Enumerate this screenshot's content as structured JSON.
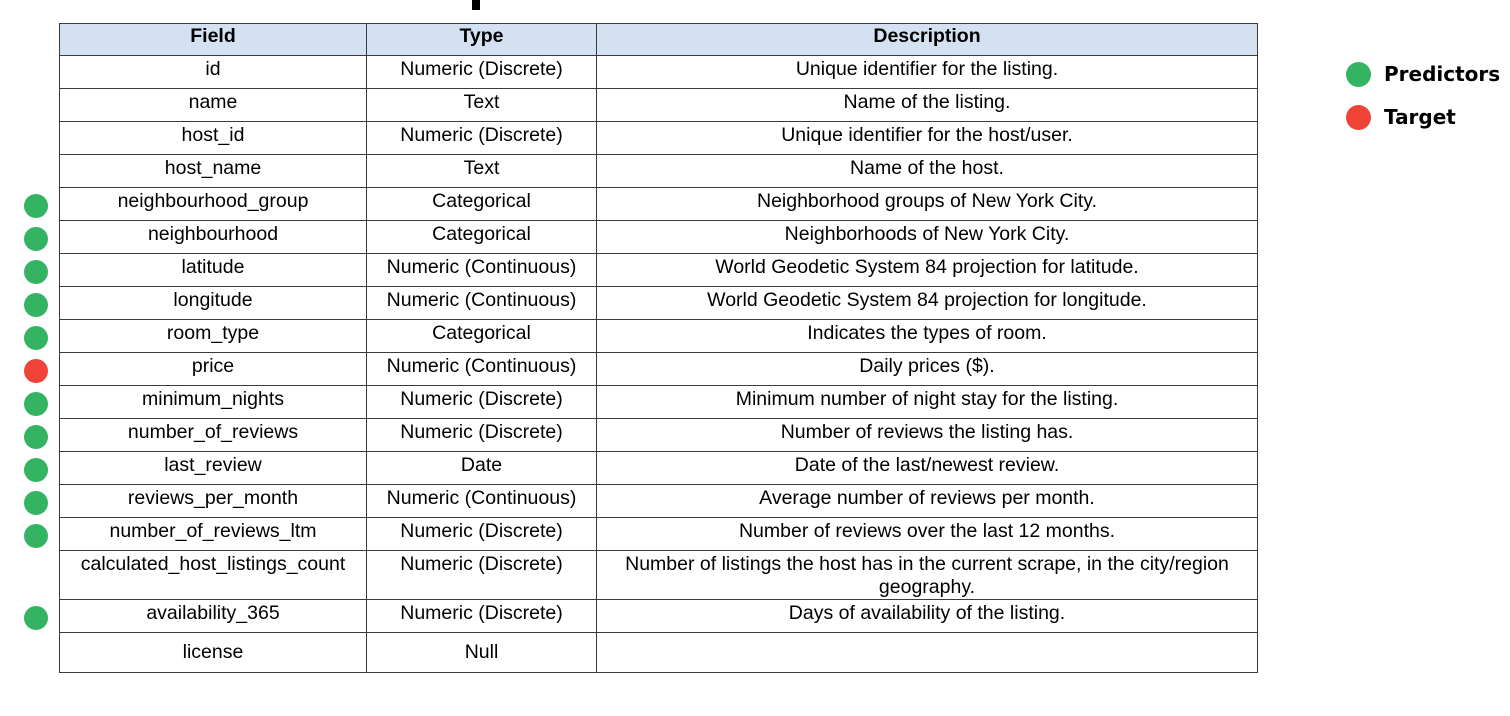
{
  "colors": {
    "predictor": "#34b363",
    "target": "#ee4336",
    "header_bg": "#d4e1f2"
  },
  "table": {
    "headers": [
      "Field",
      "Type",
      "Description"
    ],
    "rows": [
      {
        "field": "id",
        "type": "Numeric (Discrete)",
        "description": "Unique identifier for the listing.",
        "role": ""
      },
      {
        "field": "name",
        "type": "Text",
        "description": "Name of the listing.",
        "role": ""
      },
      {
        "field": "host_id",
        "type": "Numeric (Discrete)",
        "description": "Unique identifier for the host/user.",
        "role": ""
      },
      {
        "field": "host_name",
        "type": "Text",
        "description": "Name of the host.",
        "role": ""
      },
      {
        "field": "neighbourhood_group",
        "type": "Categorical",
        "description": "Neighborhood groups of New York City.",
        "role": "predictor"
      },
      {
        "field": "neighbourhood",
        "type": "Categorical",
        "description": "Neighborhoods of New York City.",
        "role": "predictor"
      },
      {
        "field": "latitude",
        "type": "Numeric (Continuous)",
        "description": "World Geodetic System 84 projection for latitude.",
        "role": "predictor"
      },
      {
        "field": "longitude",
        "type": "Numeric (Continuous)",
        "description": "World Geodetic System 84 projection for longitude.",
        "role": "predictor"
      },
      {
        "field": "room_type",
        "type": "Categorical",
        "description": "Indicates the types of room.",
        "role": "predictor"
      },
      {
        "field": "price",
        "type": "Numeric (Continuous)",
        "description": "Daily prices ($).",
        "role": "target"
      },
      {
        "field": "minimum_nights",
        "type": "Numeric (Discrete)",
        "description": "Minimum number of night stay for the listing.",
        "role": "predictor"
      },
      {
        "field": "number_of_reviews",
        "type": "Numeric (Discrete)",
        "description": "Number of reviews the listing has.",
        "role": "predictor"
      },
      {
        "field": "last_review",
        "type": "Date",
        "description": "Date of the last/newest review.",
        "role": "predictor"
      },
      {
        "field": "reviews_per_month",
        "type": "Numeric (Continuous)",
        "description": "Average number of reviews per month.",
        "role": "predictor"
      },
      {
        "field": "number_of_reviews_ltm",
        "type": "Numeric (Discrete)",
        "description": "Number of reviews over the last 12 months.",
        "role": "predictor"
      },
      {
        "field": "calculated_host_listings_count",
        "type": "Numeric (Discrete)",
        "description": "Number of listings the host has in the current scrape, in the city/region geography.",
        "role": ""
      },
      {
        "field": "availability_365",
        "type": "Numeric (Discrete)",
        "description": "Days of availability of the listing.",
        "role": "predictor"
      },
      {
        "field": "license",
        "type": "Null",
        "description": "",
        "role": ""
      }
    ]
  },
  "legend": {
    "items": [
      {
        "label": "Predictors",
        "role": "predictor"
      },
      {
        "label": "Target",
        "role": "target"
      }
    ]
  }
}
